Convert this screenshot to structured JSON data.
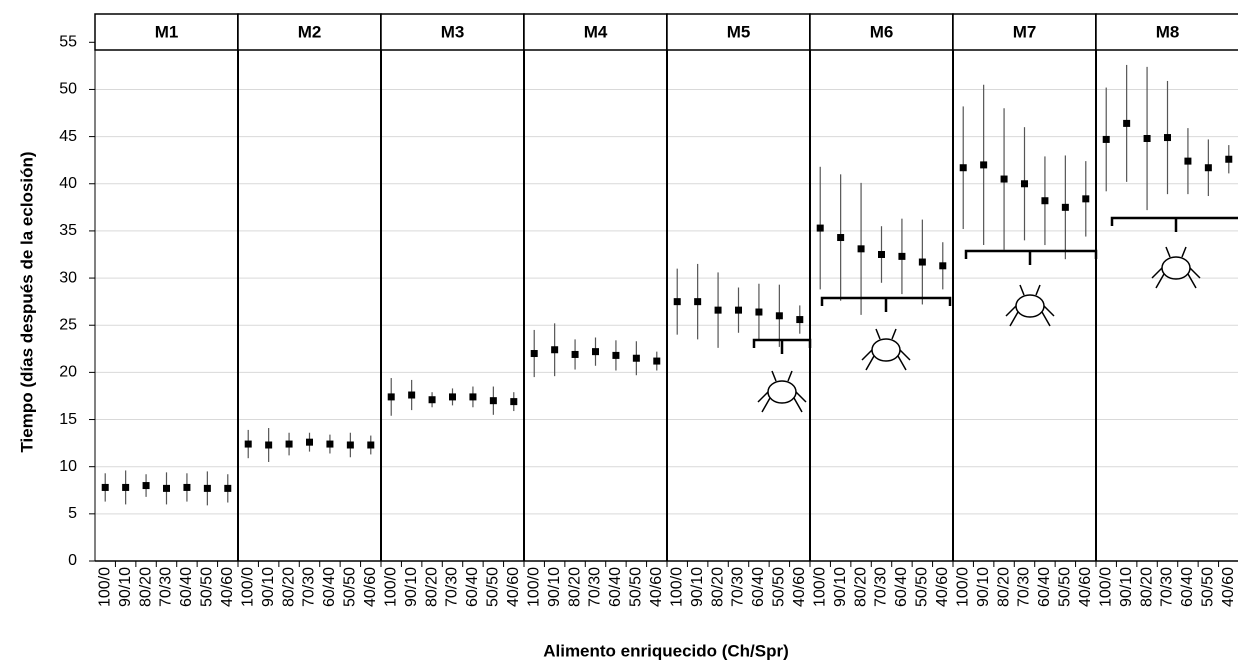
{
  "chart_data": {
    "type": "errorbar",
    "y_label": "Tiempo (días después de la eclosión)",
    "x_label": "Alimento enriquecido (Ch/Spr)",
    "categories": [
      "100/0",
      "90/10",
      "80/20",
      "70/30",
      "60/40",
      "50/50",
      "40/60"
    ],
    "ylim": [
      0,
      58
    ],
    "yticks": [
      0,
      5,
      10,
      15,
      20,
      25,
      30,
      35,
      40,
      45,
      50,
      55
    ],
    "grid": true,
    "color": "#000000",
    "panels": [
      {
        "name": "M1",
        "values": [
          7.8,
          7.8,
          8.0,
          7.7,
          7.8,
          7.7,
          7.7
        ],
        "errors": [
          1.5,
          1.8,
          1.2,
          1.7,
          1.5,
          1.8,
          1.5
        ]
      },
      {
        "name": "M2",
        "values": [
          12.4,
          12.3,
          12.4,
          12.6,
          12.4,
          12.3,
          12.3
        ],
        "errors": [
          1.5,
          1.8,
          1.2,
          1.0,
          1.0,
          1.3,
          1.0
        ]
      },
      {
        "name": "M3",
        "values": [
          17.4,
          17.6,
          17.1,
          17.4,
          17.4,
          17.0,
          16.9
        ],
        "errors": [
          2.0,
          1.6,
          0.8,
          0.9,
          1.1,
          1.5,
          1.0
        ]
      },
      {
        "name": "M4",
        "values": [
          22.0,
          22.4,
          21.9,
          22.2,
          21.8,
          21.5,
          21.2
        ],
        "errors": [
          2.5,
          2.8,
          1.6,
          1.5,
          1.6,
          1.8,
          1.0
        ]
      },
      {
        "name": "M5",
        "values": [
          27.5,
          27.5,
          26.6,
          26.6,
          26.4,
          26.0,
          25.6
        ],
        "errors": [
          3.5,
          4.0,
          4.0,
          2.4,
          3.0,
          3.3,
          1.5
        ]
      },
      {
        "name": "M6",
        "values": [
          35.3,
          34.3,
          33.1,
          32.5,
          32.3,
          31.7,
          31.3
        ],
        "errors": [
          6.5,
          6.7,
          7.0,
          3.0,
          4.0,
          4.5,
          2.5
        ]
      },
      {
        "name": "M7",
        "values": [
          41.7,
          42.0,
          40.5,
          40.0,
          38.2,
          37.5,
          38.4
        ],
        "errors": [
          6.5,
          8.5,
          7.5,
          6.0,
          4.7,
          5.5,
          4.0
        ]
      },
      {
        "name": "M8",
        "values": [
          44.7,
          46.4,
          44.8,
          44.9,
          42.4,
          41.7,
          42.6
        ],
        "errors": [
          5.5,
          6.2,
          7.6,
          6.0,
          3.5,
          3.0,
          1.5
        ]
      }
    ]
  }
}
